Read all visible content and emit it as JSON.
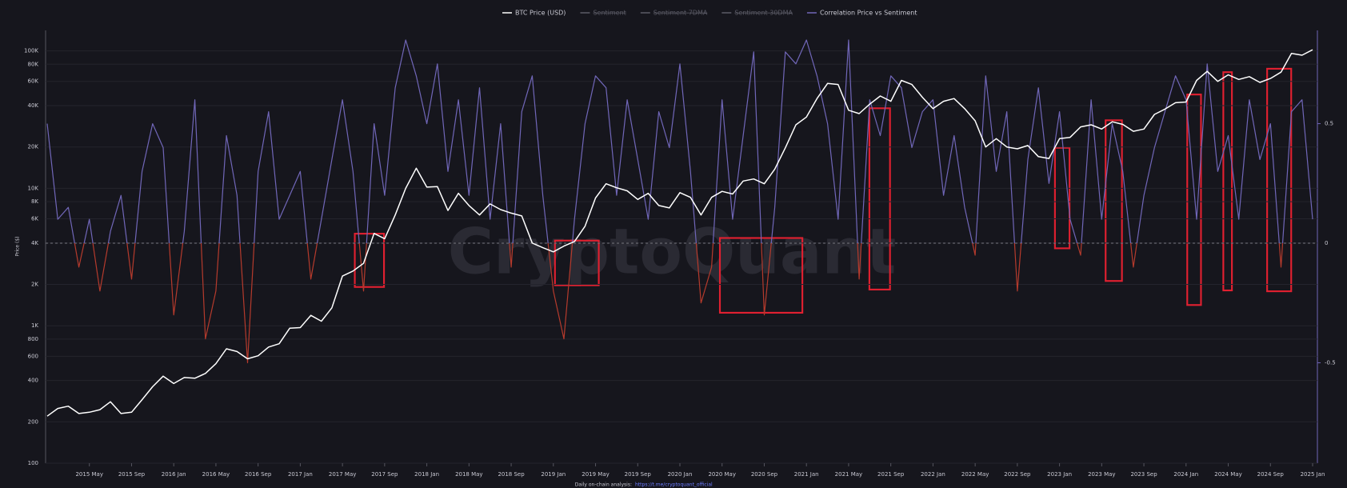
{
  "chart_data": {
    "type": "line",
    "y_label": "Price ($)",
    "watermark": "CryptoQuant",
    "hidden_series_names": [
      "Sentiment",
      "Sentiment 7DMA",
      "Sentiment 30DMA"
    ],
    "footer": {
      "text": "Daily on-chain analysis:",
      "link": "https://t.me/cryptoquant_official"
    },
    "log_y": true,
    "grid": true,
    "xlim": [
      "2015-01",
      "2025-01"
    ],
    "xticks": [
      {
        "value": "2015-05",
        "label": "2015 May"
      },
      {
        "value": "2015-09",
        "label": "2015 Sep"
      },
      {
        "value": "2016-01",
        "label": "2016 Jan"
      },
      {
        "value": "2016-05",
        "label": "2016 May"
      },
      {
        "value": "2016-09",
        "label": "2016 Sep"
      },
      {
        "value": "2017-01",
        "label": "2017 Jan"
      },
      {
        "value": "2017-05",
        "label": "2017 May"
      },
      {
        "value": "2017-09",
        "label": "2017 Sep"
      },
      {
        "value": "2018-01",
        "label": "2018 Jan"
      },
      {
        "value": "2018-05",
        "label": "2018 May"
      },
      {
        "value": "2018-09",
        "label": "2018 Sep"
      },
      {
        "value": "2019-01",
        "label": "2019 Jan"
      },
      {
        "value": "2019-05",
        "label": "2019 May"
      },
      {
        "value": "2019-09",
        "label": "2019 Sep"
      },
      {
        "value": "2020-01",
        "label": "2020 Jan"
      },
      {
        "value": "2020-05",
        "label": "2020 May"
      },
      {
        "value": "2020-09",
        "label": "2020 Sep"
      },
      {
        "value": "2021-01",
        "label": "2021 Jan"
      },
      {
        "value": "2021-05",
        "label": "2021 May"
      },
      {
        "value": "2021-09",
        "label": "2021 Sep"
      },
      {
        "value": "2022-01",
        "label": "2022 Jan"
      },
      {
        "value": "2022-05",
        "label": "2022 May"
      },
      {
        "value": "2022-09",
        "label": "2022 Sep"
      },
      {
        "value": "2023-01",
        "label": "2023 Jan"
      },
      {
        "value": "2023-05",
        "label": "2023 May"
      },
      {
        "value": "2023-09",
        "label": "2023 Sep"
      },
      {
        "value": "2024-01",
        "label": "2024 Jan"
      },
      {
        "value": "2024-05",
        "label": "2024 May"
      },
      {
        "value": "2024-09",
        "label": "2024 Sep"
      },
      {
        "value": "2025-01",
        "label": "2025 Jan"
      }
    ],
    "ylim": [
      100,
      141000
    ],
    "yticks": [
      100,
      200,
      400,
      600,
      800,
      {
        "value": 1000,
        "label": "1K"
      },
      {
        "value": 2000,
        "label": "2K"
      },
      {
        "value": 4000,
        "label": "4K"
      },
      {
        "value": 6000,
        "label": "6K"
      },
      {
        "value": 8000,
        "label": "8K"
      },
      {
        "value": 10000,
        "label": "10K"
      },
      {
        "value": 20000,
        "label": "20K"
      },
      {
        "value": 40000,
        "label": "40K"
      },
      {
        "value": 60000,
        "label": "60K"
      },
      {
        "value": 80000,
        "label": "80K"
      },
      {
        "value": 100000,
        "label": "100K"
      }
    ],
    "y2lim": [
      -0.92,
      0.89
    ],
    "y2ticks": [
      0.5,
      0,
      -0.5
    ],
    "x": [
      "2015-01",
      "2015-02",
      "2015-03",
      "2015-04",
      "2015-05",
      "2015-06",
      "2015-07",
      "2015-08",
      "2015-09",
      "2015-10",
      "2015-11",
      "2015-12",
      "2016-01",
      "2016-02",
      "2016-03",
      "2016-04",
      "2016-05",
      "2016-06",
      "2016-07",
      "2016-08",
      "2016-09",
      "2016-10",
      "2016-11",
      "2016-12",
      "2017-01",
      "2017-02",
      "2017-03",
      "2017-04",
      "2017-05",
      "2017-06",
      "2017-07",
      "2017-08",
      "2017-09",
      "2017-10",
      "2017-11",
      "2017-12",
      "2018-01",
      "2018-02",
      "2018-03",
      "2018-04",
      "2018-05",
      "2018-06",
      "2018-07",
      "2018-08",
      "2018-09",
      "2018-10",
      "2018-11",
      "2018-12",
      "2019-01",
      "2019-02",
      "2019-03",
      "2019-04",
      "2019-05",
      "2019-06",
      "2019-07",
      "2019-08",
      "2019-09",
      "2019-10",
      "2019-11",
      "2019-12",
      "2020-01",
      "2020-02",
      "2020-03",
      "2020-04",
      "2020-05",
      "2020-06",
      "2020-07",
      "2020-08",
      "2020-09",
      "2020-10",
      "2020-11",
      "2020-12",
      "2021-01",
      "2021-02",
      "2021-03",
      "2021-04",
      "2021-05",
      "2021-06",
      "2021-07",
      "2021-08",
      "2021-09",
      "2021-10",
      "2021-11",
      "2021-12",
      "2022-01",
      "2022-02",
      "2022-03",
      "2022-04",
      "2022-05",
      "2022-06",
      "2022-07",
      "2022-08",
      "2022-09",
      "2022-10",
      "2022-11",
      "2022-12",
      "2023-01",
      "2023-02",
      "2023-03",
      "2023-04",
      "2023-05",
      "2023-06",
      "2023-07",
      "2023-08",
      "2023-09",
      "2023-10",
      "2023-11",
      "2023-12",
      "2024-01",
      "2024-02",
      "2024-03",
      "2024-04",
      "2024-05",
      "2024-06",
      "2024-07",
      "2024-08",
      "2024-09",
      "2024-10",
      "2024-11",
      "2024-12",
      "2025-01"
    ],
    "series": [
      {
        "name": "BTC Price (USD)",
        "color": "#ffffff",
        "axis": "y",
        "values": [
          220,
          250,
          260,
          230,
          235,
          245,
          280,
          230,
          235,
          290,
          360,
          430,
          380,
          420,
          415,
          450,
          530,
          680,
          650,
          575,
          605,
          700,
          740,
          960,
          970,
          1190,
          1080,
          1350,
          2300,
          2500,
          2850,
          4700,
          4300,
          6400,
          10000,
          14000,
          10200,
          10300,
          6900,
          9200,
          7500,
          6400,
          7700,
          7000,
          6600,
          6300,
          4000,
          3700,
          3450,
          3800,
          4100,
          5300,
          8500,
          10800,
          10100,
          9600,
          8300,
          9200,
          7500,
          7200,
          9300,
          8600,
          6400,
          8600,
          9500,
          9100,
          11300,
          11700,
          10800,
          13800,
          19700,
          29000,
          33000,
          45000,
          58000,
          57000,
          37000,
          35000,
          41000,
          47000,
          43000,
          61000,
          57000,
          46000,
          38000,
          43000,
          45000,
          38000,
          31000,
          20000,
          23000,
          20000,
          19400,
          20500,
          17000,
          16500,
          23000,
          23500,
          28000,
          29000,
          27000,
          30500,
          29200,
          26000,
          27000,
          34500,
          37700,
          42000,
          42500,
          61000,
          71000,
          60000,
          67000,
          62000,
          65000,
          59000,
          63000,
          70000,
          96000,
          93000,
          102000
        ]
      },
      {
        "name": "Correlation Price vs Sentiment",
        "color": "#7066b8",
        "negative_color": "#b53a2c",
        "axis": "y2",
        "values": [
          0.5,
          0.1,
          0.15,
          -0.1,
          0.1,
          -0.2,
          0.05,
          0.2,
          -0.15,
          0.3,
          0.5,
          0.4,
          -0.3,
          0.05,
          0.6,
          -0.4,
          -0.2,
          0.45,
          0.2,
          -0.5,
          0.3,
          0.55,
          0.1,
          0.2,
          0.3,
          -0.15,
          0.1,
          0.35,
          0.6,
          0.3,
          -0.2,
          0.5,
          0.2,
          0.65,
          0.85,
          0.7,
          0.5,
          0.75,
          0.3,
          0.6,
          0.2,
          0.65,
          0.1,
          0.5,
          -0.1,
          0.55,
          0.7,
          0.2,
          -0.2,
          -0.4,
          0.1,
          0.5,
          0.7,
          0.65,
          0.2,
          0.6,
          0.35,
          0.1,
          0.55,
          0.4,
          0.75,
          0.3,
          -0.25,
          -0.1,
          0.6,
          0.1,
          0.45,
          0.8,
          -0.3,
          0.15,
          0.8,
          0.75,
          0.85,
          0.7,
          0.5,
          0.1,
          0.85,
          -0.15,
          0.6,
          0.45,
          0.7,
          0.65,
          0.4,
          0.55,
          0.6,
          0.2,
          0.45,
          0.15,
          -0.05,
          0.7,
          0.3,
          0.55,
          -0.2,
          0.35,
          0.65,
          0.25,
          0.55,
          0.1,
          -0.05,
          0.6,
          0.1,
          0.5,
          0.3,
          -0.1,
          0.2,
          0.4,
          0.55,
          0.7,
          0.6,
          0.1,
          0.75,
          0.3,
          0.45,
          0.1,
          0.6,
          0.35,
          0.5,
          -0.1,
          0.55,
          0.6,
          0.1
        ]
      }
    ]
  }
}
